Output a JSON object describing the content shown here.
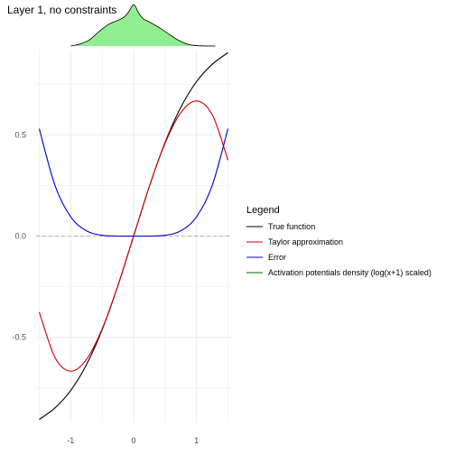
{
  "chart_data": {
    "type": "line",
    "title": "Layer 1, no constraints",
    "xlabel": "",
    "ylabel": "",
    "xlim": [
      -1.55,
      1.55
    ],
    "ylim": [
      -0.92,
      0.92
    ],
    "x_ticks": [
      -1,
      0,
      1
    ],
    "x_tick_labels": [
      "-1",
      "0",
      "1"
    ],
    "y_ticks": [
      -0.5,
      0.0,
      0.5
    ],
    "y_tick_labels": [
      "-0.5",
      "0.0",
      "0.5"
    ],
    "grid": true,
    "zero_line": "dashed",
    "legend": {
      "title": "Legend",
      "placement": "right",
      "entries": [
        "True function",
        "Taylor approximation",
        "Error",
        "Activation potentials density (log(x+1) scaled)"
      ]
    },
    "series": [
      {
        "name": "True function",
        "color": "#000000",
        "x": [
          -1.5,
          -1.25,
          -1.0,
          -0.75,
          -0.5,
          -0.25,
          0.0,
          0.25,
          0.5,
          0.75,
          1.0,
          1.25,
          1.5
        ],
        "y": [
          -0.905,
          -0.848,
          -0.762,
          -0.635,
          -0.462,
          -0.245,
          0.0,
          0.245,
          0.462,
          0.635,
          0.762,
          0.848,
          0.905
        ]
      },
      {
        "name": "Taylor approximation",
        "color": "#cc0000",
        "x": [
          -1.5,
          -1.25,
          -1.0,
          -0.75,
          -0.5,
          -0.25,
          0.0,
          0.25,
          0.5,
          0.75,
          1.0,
          1.25,
          1.5
        ],
        "y": [
          -0.375,
          -0.599,
          -0.667,
          -0.609,
          -0.458,
          -0.245,
          0.0,
          0.245,
          0.458,
          0.609,
          0.667,
          0.599,
          0.375
        ]
      },
      {
        "name": "Error",
        "color": "#0000cc",
        "x": [
          -1.5,
          -1.25,
          -1.0,
          -0.75,
          -0.5,
          -0.25,
          0.0,
          0.25,
          0.5,
          0.75,
          1.0,
          1.25,
          1.5
        ],
        "y": [
          0.53,
          0.25,
          0.095,
          0.026,
          0.004,
          0.0,
          0.0,
          0.0,
          0.004,
          0.026,
          0.095,
          0.25,
          0.53
        ]
      }
    ],
    "density": {
      "name": "Activation potentials density (log(x+1) scaled)",
      "fill": "#90ee90",
      "stroke": "#000000",
      "x": [
        -1.0,
        -0.85,
        -0.7,
        -0.55,
        -0.4,
        -0.25,
        -0.15,
        -0.08,
        -0.03,
        0.0,
        0.03,
        0.08,
        0.15,
        0.25,
        0.4,
        0.55,
        0.7,
        0.85,
        1.0,
        1.3
      ],
      "y": [
        0.0,
        0.05,
        0.15,
        0.35,
        0.52,
        0.62,
        0.7,
        0.82,
        0.95,
        1.0,
        0.95,
        0.8,
        0.66,
        0.58,
        0.45,
        0.3,
        0.15,
        0.05,
        0.01,
        0.0
      ]
    }
  }
}
